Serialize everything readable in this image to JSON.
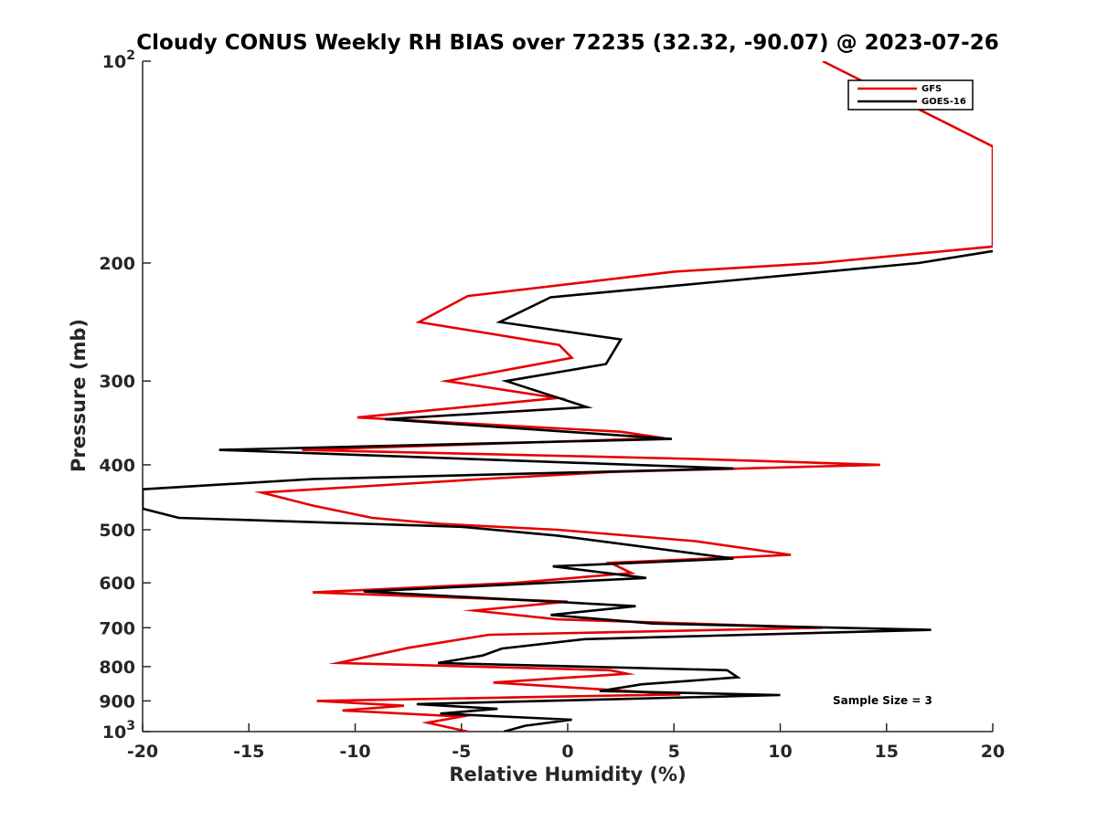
{
  "chart_data": {
    "type": "line",
    "title": "Cloudy CONUS Weekly RH BIAS over 72235 (32.32, -90.07) @ 2023-07-26",
    "xlabel": "Relative Humidity (%)",
    "ylabel": "Pressure (mb)",
    "xlim": [
      -20,
      20
    ],
    "ylim": [
      100,
      1000
    ],
    "yscale": "log",
    "y_reversed": true,
    "x_ticks": [
      {
        "value": -20,
        "label": "-20"
      },
      {
        "value": -15,
        "label": "-15"
      },
      {
        "value": -10,
        "label": "-10"
      },
      {
        "value": -5,
        "label": "-5"
      },
      {
        "value": 0,
        "label": "0"
      },
      {
        "value": 5,
        "label": "5"
      },
      {
        "value": 10,
        "label": "10"
      },
      {
        "value": 15,
        "label": "15"
      },
      {
        "value": 20,
        "label": "20"
      }
    ],
    "y_ticks": [
      {
        "value": 100,
        "base": "10",
        "exp": "2"
      },
      {
        "value": 200,
        "label": "200"
      },
      {
        "value": 300,
        "label": "300"
      },
      {
        "value": 400,
        "label": "400"
      },
      {
        "value": 500,
        "label": "500"
      },
      {
        "value": 600,
        "label": "600"
      },
      {
        "value": 700,
        "label": "700"
      },
      {
        "value": 800,
        "label": "800"
      },
      {
        "value": 900,
        "label": "900"
      },
      {
        "value": 1000,
        "base": "10",
        "exp": "3"
      }
    ],
    "legend": {
      "location": "top-right"
    },
    "annotation": "Sample Size = 3",
    "series": [
      {
        "name": "GFS",
        "color": "#e60000",
        "points": [
          [
            12.0,
            100
          ],
          [
            20.0,
            134
          ],
          [
            20.0,
            189
          ],
          [
            11.8,
            200
          ],
          [
            5.0,
            206
          ],
          [
            -4.7,
            224
          ],
          [
            -7.0,
            245
          ],
          [
            -0.4,
            265
          ],
          [
            0.2,
            277
          ],
          [
            -5.7,
            300
          ],
          [
            -0.5,
            318
          ],
          [
            -9.9,
            340
          ],
          [
            2.5,
            357
          ],
          [
            4.5,
            365
          ],
          [
            -12.5,
            380
          ],
          [
            6.0,
            392
          ],
          [
            14.7,
            400
          ],
          [
            2.0,
            410
          ],
          [
            -4.0,
            420
          ],
          [
            -14.4,
            440
          ],
          [
            -12.0,
            460
          ],
          [
            -9.2,
            480
          ],
          [
            -6.0,
            490
          ],
          [
            -0.5,
            500
          ],
          [
            6.0,
            520
          ],
          [
            10.5,
            545
          ],
          [
            2.0,
            560
          ],
          [
            3.0,
            580
          ],
          [
            -2.5,
            600
          ],
          [
            -12.0,
            620
          ],
          [
            0.0,
            640
          ],
          [
            -4.4,
            660
          ],
          [
            -0.5,
            680
          ],
          [
            12.0,
            700
          ],
          [
            -3.7,
            717
          ],
          [
            -7.5,
            750
          ],
          [
            -10.8,
            790
          ],
          [
            2.0,
            810
          ],
          [
            2.8,
            820
          ],
          [
            -3.5,
            845
          ],
          [
            5.3,
            880
          ],
          [
            -11.8,
            900
          ],
          [
            -7.7,
            915
          ],
          [
            -10.6,
            930
          ],
          [
            -5.0,
            950
          ],
          [
            -6.6,
            970
          ],
          [
            -4.7,
            1000
          ]
        ]
      },
      {
        "name": "GOES-16",
        "color": "#000000",
        "points": [
          [
            20.0,
            192
          ],
          [
            16.5,
            200
          ],
          [
            -0.8,
            225
          ],
          [
            -3.2,
            245
          ],
          [
            2.5,
            260
          ],
          [
            1.8,
            283
          ],
          [
            -2.9,
            300
          ],
          [
            0.9,
            328
          ],
          [
            -8.6,
            342
          ],
          [
            4.9,
            366
          ],
          [
            -16.4,
            380
          ],
          [
            7.8,
            405
          ],
          [
            -12.0,
            420
          ],
          [
            -20.0,
            435
          ],
          [
            -20.0,
            465
          ],
          [
            -18.3,
            480
          ],
          [
            -5.0,
            495
          ],
          [
            -0.5,
            510
          ],
          [
            7.8,
            552
          ],
          [
            -0.7,
            567
          ],
          [
            3.7,
            590
          ],
          [
            -1.0,
            600
          ],
          [
            -9.6,
            618
          ],
          [
            3.2,
            650
          ],
          [
            -0.8,
            670
          ],
          [
            4.0,
            690
          ],
          [
            17.1,
            705
          ],
          [
            0.8,
            728
          ],
          [
            -3.1,
            752
          ],
          [
            -4.0,
            770
          ],
          [
            -6.1,
            790
          ],
          [
            7.5,
            810
          ],
          [
            8.0,
            830
          ],
          [
            3.5,
            850
          ],
          [
            1.5,
            870
          ],
          [
            10.0,
            882
          ],
          [
            -7.1,
            910
          ],
          [
            -3.3,
            925
          ],
          [
            -6.0,
            940
          ],
          [
            0.2,
            960
          ],
          [
            -2.0,
            980
          ],
          [
            -3.0,
            1000
          ]
        ]
      }
    ]
  }
}
